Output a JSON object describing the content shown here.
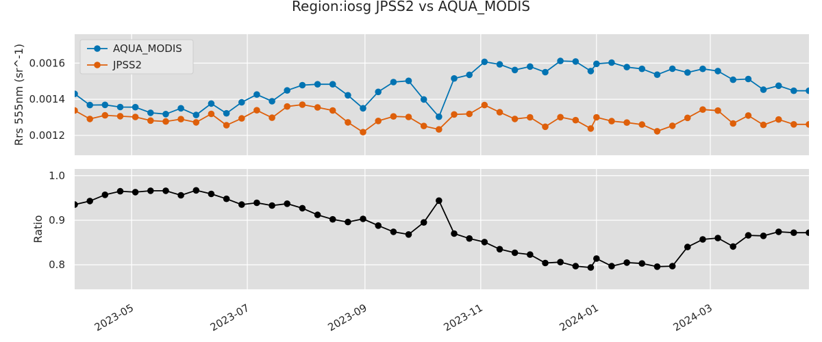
{
  "chart_data": {
    "type": "line",
    "title": "Region:iosg JPSS2 vs AQUA_MODIS",
    "x": [
      "2023-04-01",
      "2023-04-09",
      "2023-04-17",
      "2023-04-25",
      "2023-05-03",
      "2023-05-11",
      "2023-05-19",
      "2023-05-27",
      "2023-06-04",
      "2023-06-12",
      "2023-06-20",
      "2023-06-28",
      "2023-07-06",
      "2023-07-14",
      "2023-07-22",
      "2023-07-30",
      "2023-08-07",
      "2023-08-15",
      "2023-08-23",
      "2023-08-31",
      "2023-09-08",
      "2023-09-16",
      "2023-09-24",
      "2023-10-02",
      "2023-10-10",
      "2023-10-18",
      "2023-10-26",
      "2023-11-03",
      "2023-11-11",
      "2023-11-19",
      "2023-11-27",
      "2023-12-05",
      "2023-12-13",
      "2023-12-21",
      "2023-12-29",
      "2024-01-01",
      "2024-01-09",
      "2024-01-17",
      "2024-01-25",
      "2024-02-02",
      "2024-02-10",
      "2024-02-18",
      "2024-02-26",
      "2024-03-05",
      "2024-03-13",
      "2024-03-21",
      "2024-03-29",
      "2024-04-06",
      "2024-04-14",
      "2024-04-22"
    ],
    "xticks": [
      "2023-05",
      "2023-07",
      "2023-09",
      "2023-11",
      "2024-01",
      "2024-03"
    ],
    "xtick_dates": [
      "2023-05-01",
      "2023-07-01",
      "2023-09-01",
      "2023-11-01",
      "2024-01-01",
      "2024-03-01"
    ],
    "xlim": [
      "2023-04-01",
      "2024-04-22"
    ],
    "panels": [
      {
        "ylabel": "Rrs 555nm (sr^-1)",
        "ylim": [
          0.00109,
          0.00176
        ],
        "yticks": [
          0.0012,
          0.0014,
          0.0016
        ],
        "ytick_labels": [
          "0.0012",
          "0.0014",
          "0.0016"
        ],
        "legend": "top-left",
        "series": [
          {
            "name": "AQUA_MODIS",
            "color": "#0173b2",
            "values": [
              0.00143,
              0.001368,
              0.001369,
              0.001357,
              0.001356,
              0.001325,
              0.001318,
              0.00135,
              0.001313,
              0.001376,
              0.001322,
              0.001383,
              0.001426,
              0.001389,
              0.001449,
              0.001478,
              0.001483,
              0.001483,
              0.001422,
              0.00135,
              0.001441,
              0.001495,
              0.001502,
              0.001399,
              0.001303,
              0.001515,
              0.001535,
              0.001607,
              0.001593,
              0.001562,
              0.001581,
              0.00155,
              0.001612,
              0.001609,
              0.001556,
              0.001596,
              0.001603,
              0.001578,
              0.001568,
              0.001536,
              0.001569,
              0.001548,
              0.001568,
              0.001556,
              0.001508,
              0.001512,
              0.001453,
              0.001475,
              0.001447,
              0.001447
            ]
          },
          {
            "name": "JPSS2",
            "color": "#de5f0a",
            "values": [
              0.001338,
              0.001291,
              0.001311,
              0.001306,
              0.001302,
              0.001282,
              0.001277,
              0.00129,
              0.001272,
              0.001319,
              0.001256,
              0.001294,
              0.001339,
              0.001298,
              0.00136,
              0.00137,
              0.001355,
              0.001338,
              0.001272,
              0.001218,
              0.00128,
              0.001305,
              0.001302,
              0.001252,
              0.001233,
              0.001316,
              0.001319,
              0.001368,
              0.001328,
              0.001291,
              0.0013,
              0.001248,
              0.001301,
              0.001284,
              0.001238,
              0.0013,
              0.001279,
              0.001271,
              0.00126,
              0.001223,
              0.001253,
              0.001297,
              0.001343,
              0.001337,
              0.001266,
              0.00131,
              0.001258,
              0.001288,
              0.001261,
              0.001261
            ]
          }
        ]
      },
      {
        "ylabel": "Ratio",
        "ylim": [
          0.745,
          1.015
        ],
        "yticks": [
          0.8,
          0.9,
          1.0
        ],
        "ytick_labels": [
          "0.8",
          "0.9",
          "1.0"
        ],
        "series": [
          {
            "color": "#000000",
            "values": [
              0.935,
              0.943,
              0.957,
              0.965,
              0.963,
              0.966,
              0.966,
              0.956,
              0.967,
              0.959,
              0.948,
              0.935,
              0.939,
              0.933,
              0.937,
              0.927,
              0.912,
              0.902,
              0.896,
              0.903,
              0.888,
              0.874,
              0.868,
              0.895,
              0.944,
              0.87,
              0.859,
              0.851,
              0.835,
              0.827,
              0.823,
              0.804,
              0.806,
              0.797,
              0.794,
              0.814,
              0.797,
              0.805,
              0.803,
              0.796,
              0.797,
              0.84,
              0.857,
              0.86,
              0.841,
              0.866,
              0.865,
              0.874,
              0.872,
              0.872
            ]
          }
        ]
      }
    ],
    "background": "#dfdfdf",
    "grid": true
  }
}
